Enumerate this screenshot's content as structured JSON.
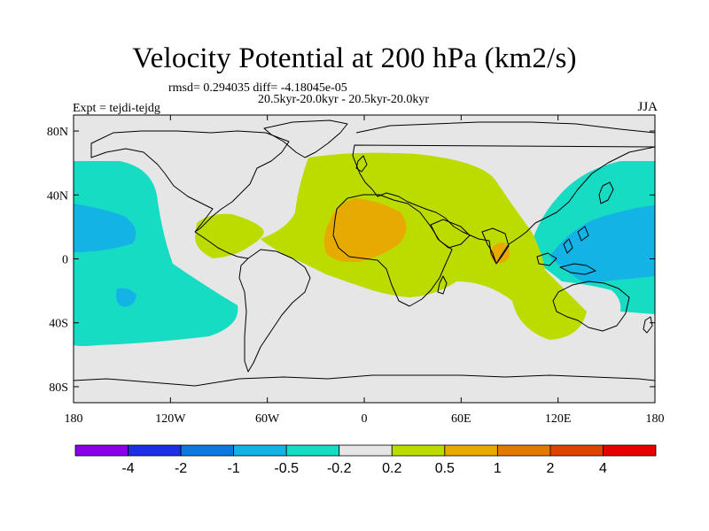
{
  "title": "Velocity Potential at 200 hPa (km2/s)",
  "stats_line": "rmsd= 0.294035 diff= -4.18045e-05",
  "subtitle": "20.5kyr-20.0kyr - 20.5kyr-20.0kyr",
  "experiment": "Expt = tejdi-tejdg",
  "season": "JJA",
  "map": {
    "projection": "cylindrical equidistant",
    "lon_range": [
      -180,
      180
    ],
    "lat_range": [
      -90,
      90
    ],
    "lat_ticks": [
      {
        "value": 80,
        "label": "80N"
      },
      {
        "value": 40,
        "label": "40N"
      },
      {
        "value": 0,
        "label": "0"
      },
      {
        "value": -40,
        "label": "40S"
      },
      {
        "value": -80,
        "label": "80S"
      }
    ],
    "lon_ticks": [
      {
        "value": -180,
        "label": "180"
      },
      {
        "value": -120,
        "label": "120W"
      },
      {
        "value": -60,
        "label": "60W"
      },
      {
        "value": 0,
        "label": "0"
      },
      {
        "value": 60,
        "label": "60E"
      },
      {
        "value": 120,
        "label": "120E"
      },
      {
        "value": 180,
        "label": "180"
      }
    ]
  },
  "colorbar": {
    "colors": [
      "#8a00e8",
      "#1c2ee6",
      "#0e78de",
      "#13b3e6",
      "#16dcc3",
      "#e6e6e6",
      "#bcdc00",
      "#e6aa00",
      "#e17a00",
      "#dc4400",
      "#e60000"
    ],
    "levels": [
      "-4",
      "-2",
      "-1",
      "-0.5",
      "-0.2",
      "0.2",
      "0.5",
      "1",
      "2",
      "4"
    ]
  },
  "field_colors": {
    "background": "#e6e6e6",
    "negative_weak": "#16dcc3",
    "negative_moderate": "#13b3e6",
    "positive_weak": "#bcdc00",
    "positive_moderate": "#e6aa00"
  }
}
